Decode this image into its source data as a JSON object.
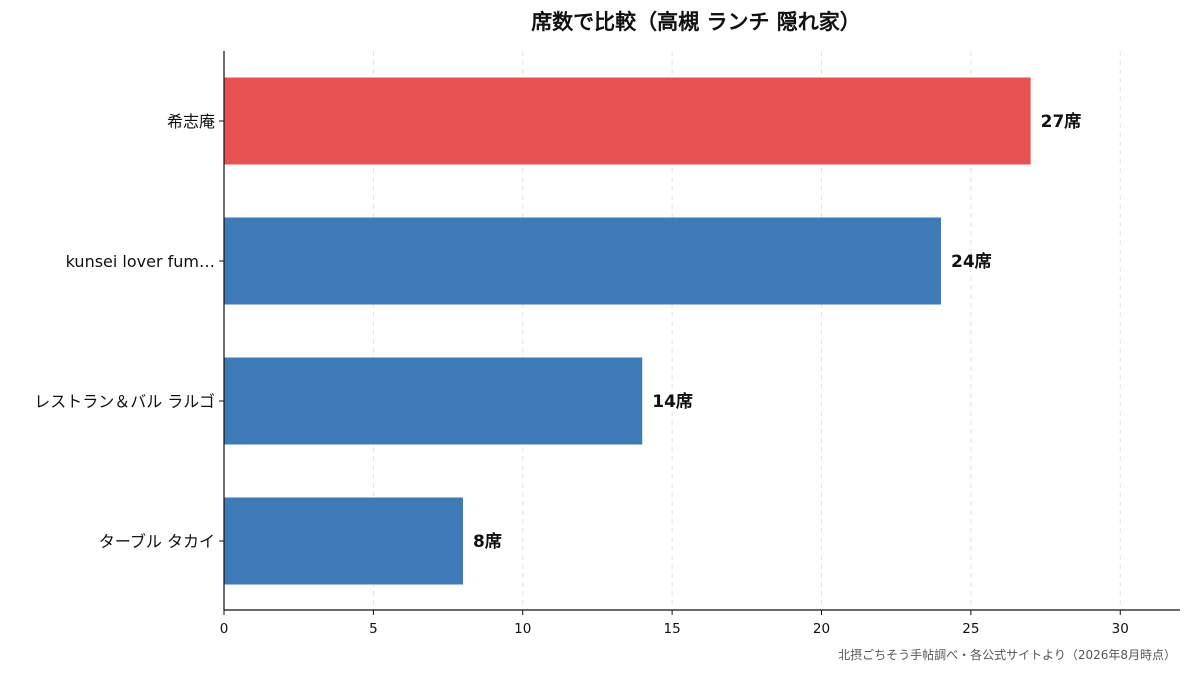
{
  "chart_data": {
    "type": "bar",
    "orientation": "horizontal",
    "title": "席数で比較（高槻 ランチ 隠れ家）",
    "categories": [
      "希志庵",
      "kunsei lover fum…",
      "レストラン＆バル ラルゴ",
      "ターブル タカイ"
    ],
    "values": [
      27,
      24,
      14,
      8
    ],
    "value_suffix": "席",
    "highlight_index": 0,
    "colors": {
      "highlight": "#e85151",
      "default": "#3e7ab6",
      "grid": "#e3e3e3",
      "axis": "#111111"
    },
    "xlim": [
      0,
      32
    ],
    "xticks": [
      0,
      5,
      10,
      15,
      20,
      25,
      30
    ],
    "xlabel": "",
    "ylabel": "",
    "grid": "vertical-dashed",
    "legend": "none"
  },
  "source_note": "北摂ごちそう手帖調べ・各公式サイトより（2026年8月時点）"
}
